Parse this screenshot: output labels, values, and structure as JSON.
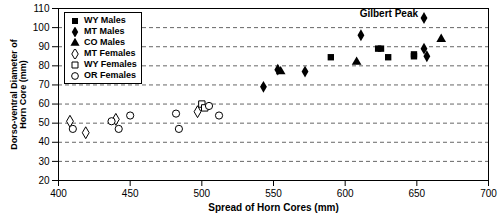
{
  "chart_data": {
    "type": "scatter",
    "x_label": "Spread of Horn Cores (mm)",
    "y_label": "Dorso-ventral Diameter of Horn Core (mm)",
    "xlim": [
      400,
      700
    ],
    "xticks": [
      400,
      450,
      500,
      550,
      600,
      650,
      700
    ],
    "ylim": [
      20,
      110
    ],
    "yticks": [
      20,
      30,
      40,
      50,
      60,
      70,
      80,
      90,
      100,
      110
    ],
    "grid": true,
    "legend": "upper left",
    "series": [
      {
        "name": "WY Males",
        "color": "#000000",
        "marker": "square",
        "x": [
          590,
          623,
          625,
          630,
          648,
          648
        ],
        "values": [
          84.5,
          89,
          89,
          84.5,
          85,
          86
        ]
      },
      {
        "name": "MT Males",
        "color": "#000000",
        "marker": "diamond",
        "x": [
          543,
          553,
          572,
          611,
          655,
          657,
          655
        ],
        "values": [
          69,
          78,
          77,
          96,
          89,
          85,
          105
        ]
      },
      {
        "name": "CO Males",
        "color": "#000000",
        "marker": "triangle",
        "x": [
          555,
          608,
          667
        ],
        "values": [
          77,
          82,
          94
        ]
      },
      {
        "name": "MT Females",
        "color": "#000000",
        "marker": "diamond-open",
        "x": [
          408,
          419,
          440,
          497
        ],
        "values": [
          51,
          45,
          52,
          56
        ]
      },
      {
        "name": "WY Females",
        "color": "#000000",
        "marker": "square-open",
        "x": [
          500,
          502
        ],
        "values": [
          60,
          58
        ]
      },
      {
        "name": "OR Females",
        "color": "#000000",
        "marker": "circle-open",
        "x": [
          410,
          437,
          442,
          450,
          482,
          484,
          505,
          512
        ],
        "values": [
          47,
          51,
          47,
          54,
          55,
          47,
          59,
          54
        ]
      }
    ],
    "annotations": [
      {
        "text": "Gilbert Peak",
        "x": 655,
        "y": 105
      }
    ]
  }
}
